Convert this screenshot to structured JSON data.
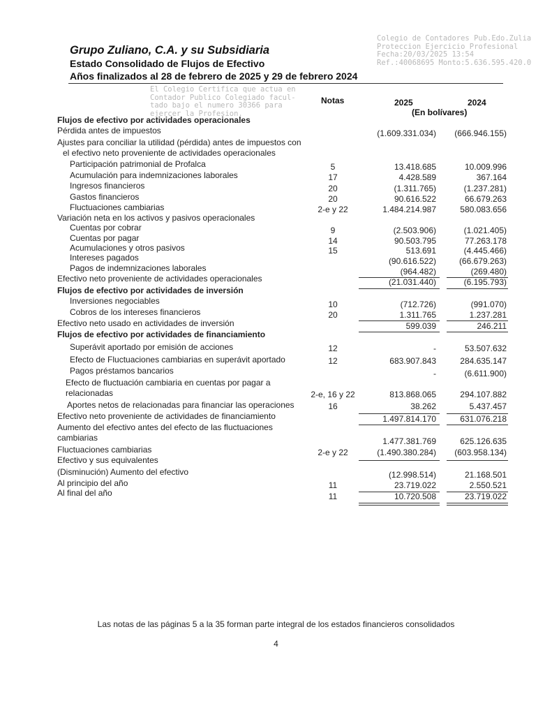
{
  "header": {
    "company": "Grupo Zuliano, C.A. y su Subsidiaria",
    "statement": "Estado Consolidado de Flujos de Efectivo",
    "period": "Años finalizados al 28 de febrero de 2025 y 29 de febrero 2024"
  },
  "stamp": {
    "lines_top": [
      "Colegio de Contadores Pub.Edo.Zulia",
      "Proteccion Ejercicio Profesional",
      "Fecha:20/03/2025 13:54",
      "Ref.:40068695 Monto:5.636.595.420.0"
    ],
    "lines_bottom": [
      "El Colegio Certifica que actua en",
      "Contador Publico Colegiado facul-",
      "tado bajo el numero 30366 para",
      "ejercer la Profesion."
    ]
  },
  "columns": {
    "notes": "Notas",
    "y2025": "2025",
    "y2024": "2024",
    "currency": "(En bolívares)"
  },
  "rows": [
    {
      "label": "Flujos de efectivo por actividades operacionales"
    },
    {
      "label": "Pérdida antes de impuestos",
      "note": "",
      "v2025": "(1.609.331.034)",
      "v2024": "(666.946.155)"
    },
    {
      "label": "Ajustes para conciliar la utilidad (pérdida) antes de impuestos con"
    },
    {
      "label": "el efectivo neto proveniente de actividades operacionales"
    },
    {
      "label": "Participación patrimonial de Profalca",
      "note": "5",
      "v2025": "13.418.685",
      "v2024": "10.009.996"
    },
    {
      "label": "Acumulación para indemnizaciones laborales",
      "note": "17",
      "v2025": "4.428.589",
      "v2024": "367.164"
    },
    {
      "label": "Ingresos financieros",
      "note": "20",
      "v2025": "(1.311.765)",
      "v2024": "(1.237.281)"
    },
    {
      "label": "Gastos financieros",
      "note": "20",
      "v2025": "90.616.522",
      "v2024": "66.679.263"
    },
    {
      "label": "Fluctuaciones cambiarias",
      "note": "2-e y 22",
      "v2025": "1.484.214.987",
      "v2024": "580.083.656"
    },
    {
      "label": "Variación neta en los activos y pasivos operacionales"
    },
    {
      "label": "Cuentas por cobrar",
      "note": "9",
      "v2025": "(2.503.906)",
      "v2024": "(1.021.405)"
    },
    {
      "label": "Cuentas por pagar",
      "note": "14",
      "v2025": "90.503.795",
      "v2024": "77.263.178"
    },
    {
      "label": "Acumulaciones y otros pasivos",
      "note": "15",
      "v2025": "513.691",
      "v2024": "(4.445.466)"
    },
    {
      "label": "Intereses pagados",
      "note": "",
      "v2025": "(90.616.522)",
      "v2024": "(66.679.263)"
    },
    {
      "label": "Pagos de indemnizaciones laborales",
      "note": "",
      "v2025": "(964.482)",
      "v2024": "(269.480)"
    },
    {
      "label": "Efectivo neto proveniente de actividades operacionales",
      "note": "",
      "v2025": "(21.031.440)",
      "v2024": "(6.195.793)"
    },
    {
      "label": "Flujos de efectivo por actividades de inversión"
    },
    {
      "label": "Inversiones negociables",
      "note": "10",
      "v2025": "(712.726)",
      "v2024": "(991.070)"
    },
    {
      "label": "Cobros de los intereses financieros",
      "note": "20",
      "v2025": "1.311.765",
      "v2024": "1.237.281"
    },
    {
      "label": "Efectivo neto usado en actividades de inversión",
      "note": "",
      "v2025": "599.039",
      "v2024": "246.211"
    },
    {
      "label": "Flujos de efectivo por actividades de financiamiento"
    },
    {
      "label": "Superávit aportado por emisión de acciones",
      "note": "12",
      "v2025": "-",
      "v2024": "53.507.632"
    },
    {
      "label": "Efecto de Fluctuaciones cambiarias en superávit aportado",
      "note": "12",
      "v2025": "683.907.843",
      "v2024": "284.635.147"
    },
    {
      "label": "Pagos préstamos bancarios",
      "note": "",
      "v2025": "-",
      "v2024": "(6.611.900)"
    },
    {
      "label": "Efecto de fluctuación cambiaria en cuentas por pagar a"
    },
    {
      "label": "relacionadas",
      "note": "2-e, 16 y 22",
      "v2025": "813.868.065",
      "v2024": "294.107.882"
    },
    {
      "label": "Aportes netos de relacionadas para financiar las operaciones",
      "note": "16",
      "v2025": "38.262",
      "v2024": "5.437.457"
    },
    {
      "label": "Efectivo neto proveniente de actividades de financiamiento",
      "note": "",
      "v2025": "1.497.814.170",
      "v2024": "631.076.218"
    },
    {
      "label": "Aumento del efectivo antes del efecto de las fluctuaciones"
    },
    {
      "label": "cambiarias",
      "note": "",
      "v2025": "1.477.381.769",
      "v2024": "625.126.635"
    },
    {
      "label": "Fluctuaciones cambiarias",
      "note": "2-e y 22",
      "v2025": "(1.490.380.284)",
      "v2024": "(603.958.134)"
    },
    {
      "label": "Efectivo y sus equivalentes"
    },
    {
      "label": "(Disminución) Aumento del efectivo",
      "note": "",
      "v2025": "(12.998.514)",
      "v2024": "21.168.501"
    },
    {
      "label": "Al principio del año",
      "note": "11",
      "v2025": "23.719.022",
      "v2024": "2.550.521"
    },
    {
      "label": "Al final del año",
      "note": "11",
      "v2025": "10.720.508",
      "v2024": "23.719.022"
    }
  ],
  "footer": {
    "note": "Las notas de las páginas 5 a la 35 forman parte integral de los estados financieros consolidados",
    "page_number": "4"
  }
}
